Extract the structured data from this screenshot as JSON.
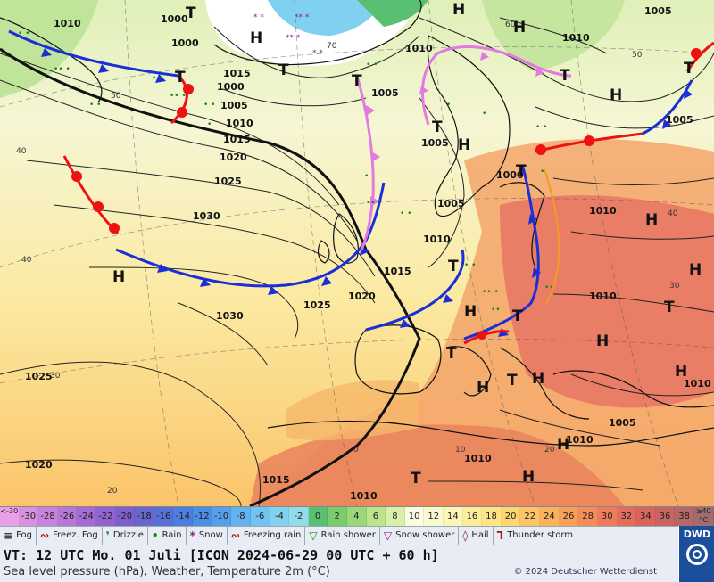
{
  "map": {
    "high_labels": [
      "H",
      "H",
      "H",
      "H",
      "H",
      "H",
      "H",
      "H",
      "H",
      "H",
      "H",
      "H",
      "H",
      "H",
      "H"
    ],
    "low_labels": [
      "T",
      "T",
      "T",
      "T",
      "T",
      "T",
      "T",
      "T",
      "T",
      "T",
      "T",
      "T",
      "T",
      "T"
    ],
    "pressure_labels": [
      "1010",
      "1000",
      "1000",
      "1000",
      "1005",
      "1010",
      "1015",
      "1020",
      "1025",
      "1030",
      "1030",
      "1025",
      "1025",
      "1020",
      "1015",
      "1010",
      "1005",
      "1010",
      "1005",
      "1015",
      "1020",
      "1010",
      "1010",
      "1005",
      "1005",
      "1010",
      "1005",
      "1010",
      "1010",
      "1010",
      "1000",
      "1005",
      "1015",
      "1010"
    ],
    "gridline_labels": [
      "50",
      "40",
      "40",
      "30",
      "20",
      "0",
      "10",
      "20",
      "30",
      "40",
      "50",
      "60",
      "70"
    ]
  },
  "temperature_scale": {
    "cells": [
      {
        "label": "<-30",
        "color": "#e8a0e8"
      },
      {
        "label": "-30",
        "color": "#d890e0"
      },
      {
        "label": "-28",
        "color": "#c884dc"
      },
      {
        "label": "-26",
        "color": "#b678d8"
      },
      {
        "label": "-24",
        "color": "#a46cd4"
      },
      {
        "label": "-22",
        "color": "#9264d0"
      },
      {
        "label": "-20",
        "color": "#7c60cc"
      },
      {
        "label": "-18",
        "color": "#6a66d0"
      },
      {
        "label": "-16",
        "color": "#5a70d8"
      },
      {
        "label": "-14",
        "color": "#4c7ee0"
      },
      {
        "label": "-12",
        "color": "#4c8ee6"
      },
      {
        "label": "-10",
        "color": "#56a0ea"
      },
      {
        "label": "-8",
        "color": "#64b2ee"
      },
      {
        "label": "-6",
        "color": "#72c4f0"
      },
      {
        "label": "-4",
        "color": "#82d2ee"
      },
      {
        "label": "-2",
        "color": "#92dcea"
      },
      {
        "label": "0",
        "color": "#58c070"
      },
      {
        "label": "2",
        "color": "#7acc6c"
      },
      {
        "label": "4",
        "color": "#9cd878"
      },
      {
        "label": "6",
        "color": "#bce48a"
      },
      {
        "label": "8",
        "color": "#daf0a8"
      },
      {
        "label": "10",
        "color": "#fbfbe6"
      },
      {
        "label": "12",
        "color": "#fafad0"
      },
      {
        "label": "14",
        "color": "#fbf5b6"
      },
      {
        "label": "16",
        "color": "#fcee9c"
      },
      {
        "label": "18",
        "color": "#fde484"
      },
      {
        "label": "20",
        "color": "#fdd672"
      },
      {
        "label": "22",
        "color": "#fcc464"
      },
      {
        "label": "24",
        "color": "#fbb25c"
      },
      {
        "label": "26",
        "color": "#f8a058"
      },
      {
        "label": "28",
        "color": "#f48e58"
      },
      {
        "label": "30",
        "color": "#ee7c5a"
      },
      {
        "label": "32",
        "color": "#e46c5c"
      },
      {
        "label": "34",
        "color": "#d8645e"
      },
      {
        "label": "36",
        "color": "#c86462"
      },
      {
        "label": "38",
        "color": "#b46868"
      },
      {
        "label": "≥40 °C",
        "color": "#a06c6e"
      }
    ]
  },
  "legend": {
    "items": [
      {
        "symbol": "≡",
        "label": "Fog",
        "color": "#333333"
      },
      {
        "symbol": "∾",
        "label": "Freez. Fog",
        "color": "#b01010"
      },
      {
        "symbol": "❜",
        "label": "Drizzle",
        "color": "#118811"
      },
      {
        "symbol": "•",
        "label": "Rain",
        "color": "#118811"
      },
      {
        "symbol": "*",
        "label": "Snow",
        "color": "#8a1a8a"
      },
      {
        "symbol": "∾",
        "label": "Freezing rain",
        "color": "#b01010"
      },
      {
        "symbol": "▽",
        "label": "Rain shower",
        "color": "#118811"
      },
      {
        "symbol": "▽",
        "label": "Snow shower",
        "color": "#8a1a8a"
      },
      {
        "symbol": "◊",
        "label": "Hail",
        "color": "#8a1a4a"
      },
      {
        "symbol": "Ꞁ",
        "label": "Thunder storm",
        "color": "#b01010"
      }
    ]
  },
  "info": {
    "valid_time": "VT: 12 UTC Mo.  01 Juli [ICON 2024-06-29  00 UTC + 60 h]",
    "subtitle": "Sea level pressure (hPa), Weather, Temperature 2m (°C)",
    "copyright": "© 2024 Deutscher Wetterdienst",
    "logo_text": "DWD"
  },
  "colors": {
    "cold_front": "#1a2fd6",
    "warm_front": "#ee1111",
    "occluded_front": "#e27ae2",
    "isobar": "#222222"
  }
}
